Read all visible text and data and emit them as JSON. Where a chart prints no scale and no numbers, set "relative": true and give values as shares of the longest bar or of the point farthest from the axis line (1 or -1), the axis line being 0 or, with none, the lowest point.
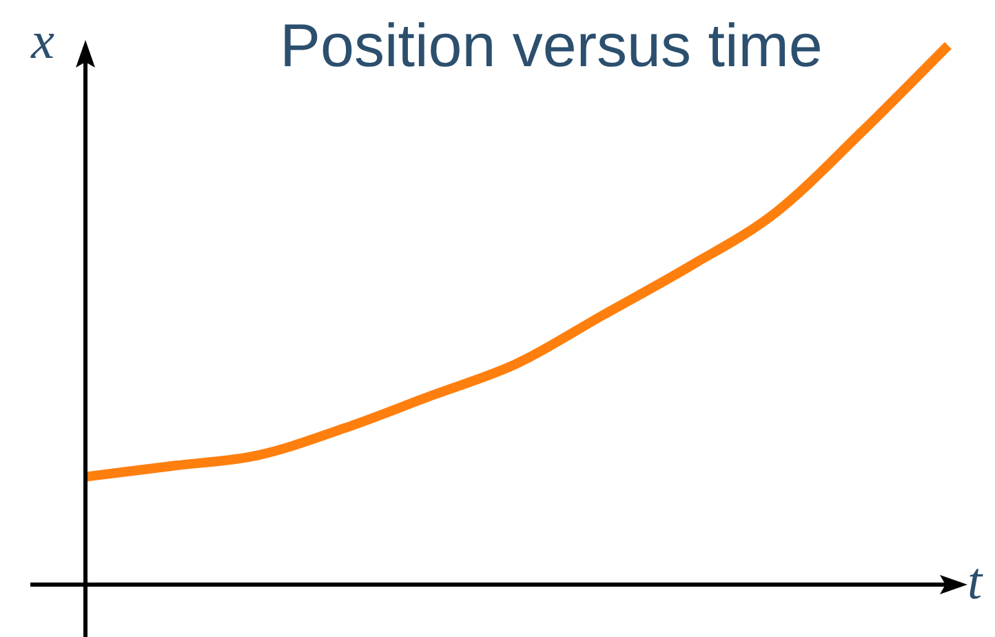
{
  "chart_data": {
    "type": "line",
    "title": "Position versus time",
    "xlabel": "t",
    "ylabel": "x",
    "relative": true,
    "categories": [
      null,
      null,
      null,
      null,
      null,
      null,
      null,
      null,
      null,
      null,
      null
    ],
    "series": [
      {
        "color": "#ff7f0e",
        "values": [
          0.2,
          0.22,
          0.24,
          0.29,
          0.35,
          0.41,
          0.5,
          0.59,
          0.69,
          0.84,
          1
        ]
      }
    ]
  }
}
